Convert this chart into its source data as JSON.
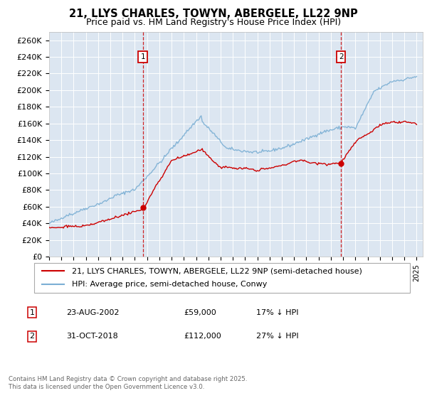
{
  "title": "21, LLYS CHARLES, TOWYN, ABERGELE, LL22 9NP",
  "subtitle": "Price paid vs. HM Land Registry's House Price Index (HPI)",
  "ylim": [
    0,
    270000
  ],
  "yticks": [
    0,
    20000,
    40000,
    60000,
    80000,
    100000,
    120000,
    140000,
    160000,
    180000,
    200000,
    220000,
    240000,
    260000
  ],
  "ytick_labels": [
    "£0",
    "£20K",
    "£40K",
    "£60K",
    "£80K",
    "£100K",
    "£120K",
    "£140K",
    "£160K",
    "£180K",
    "£200K",
    "£220K",
    "£240K",
    "£260K"
  ],
  "background_color": "#dce6f1",
  "grid_color": "#ffffff",
  "red_color": "#cc0000",
  "blue_color": "#7bafd4",
  "marker1_date": 2002.65,
  "marker1_price": 59000,
  "marker2_date": 2018.83,
  "marker2_price": 112000,
  "legend_label_red": "21, LLYS CHARLES, TOWYN, ABERGELE, LL22 9NP (semi-detached house)",
  "legend_label_blue": "HPI: Average price, semi-detached house, Conwy",
  "annotation1": [
    "1",
    "23-AUG-2002",
    "£59,000",
    "17% ↓ HPI"
  ],
  "annotation2": [
    "2",
    "31-OCT-2018",
    "£112,000",
    "27% ↓ HPI"
  ],
  "footer": "Contains HM Land Registry data © Crown copyright and database right 2025.\nThis data is licensed under the Open Government Licence v3.0.",
  "title_fontsize": 10.5,
  "subtitle_fontsize": 9,
  "tick_fontsize": 8,
  "legend_fontsize": 8
}
